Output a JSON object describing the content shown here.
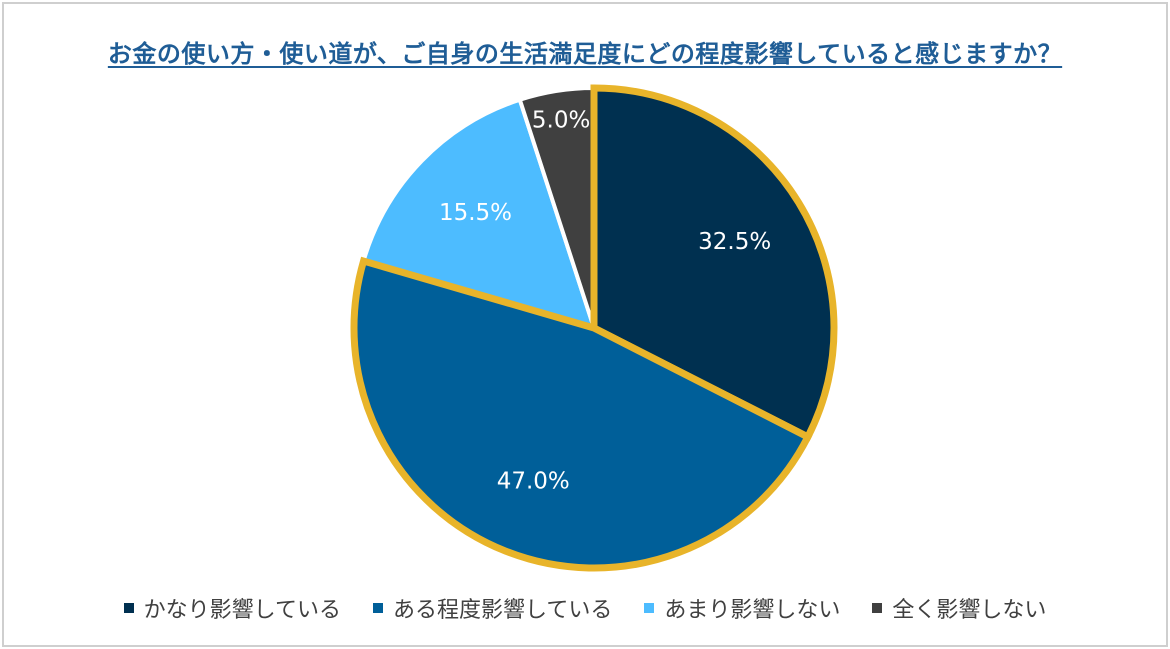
{
  "chart_data": {
    "type": "pie",
    "title": "お金の使い方・使い道が、ご自身の生活満足度にどの程度影響していると感じますか？",
    "categories": [
      "かなり影響している",
      "ある程度影響している",
      "あまり影響しない",
      "全く影響しない"
    ],
    "values": [
      32.5,
      47.0,
      15.5,
      5.0
    ],
    "labels": [
      "32.5%",
      "47.0%",
      "15.5%",
      "5.0%"
    ],
    "colors": [
      "#003050",
      "#005f99",
      "#4dbcff",
      "#404040"
    ],
    "highlight_color": "#e8b42a",
    "highlighted": [
      0,
      1
    ],
    "legend_position": "bottom"
  }
}
